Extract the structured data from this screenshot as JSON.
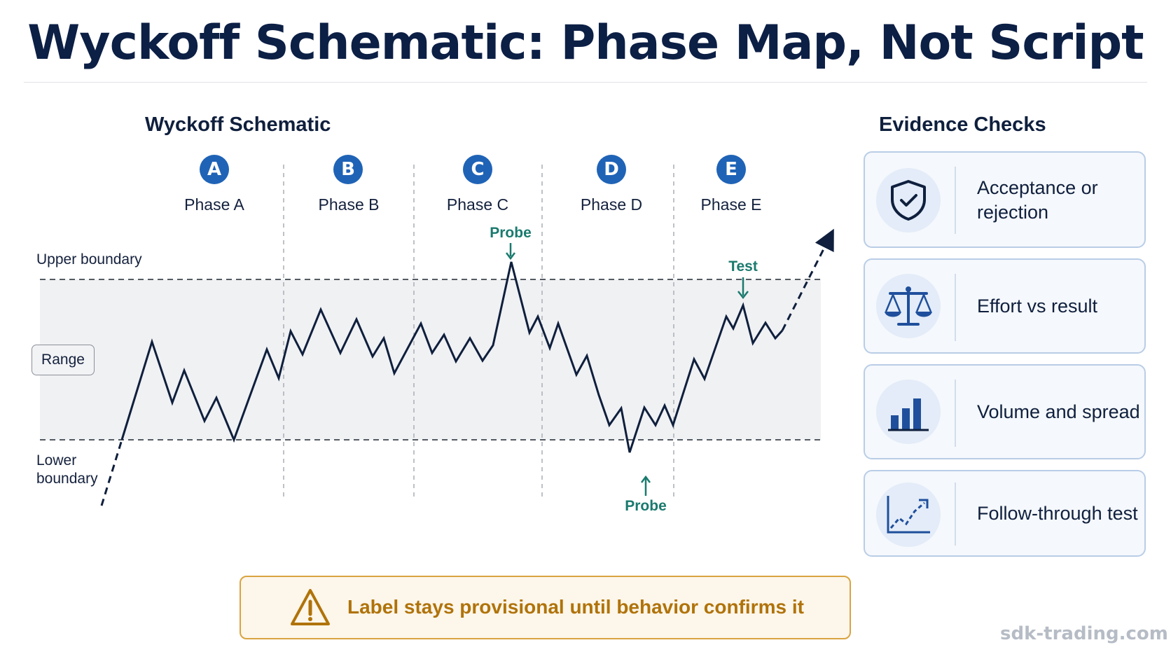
{
  "title": "Wyckoff Schematic: Phase Map, Not Script",
  "schematic": {
    "heading": "Wyckoff Schematic",
    "phases": [
      {
        "badge": "A",
        "label": "Phase A"
      },
      {
        "badge": "B",
        "label": "Phase B"
      },
      {
        "badge": "C",
        "label": "Phase C"
      },
      {
        "badge": "D",
        "label": "Phase D"
      },
      {
        "badge": "E",
        "label": "Phase E"
      }
    ],
    "upper_boundary": "Upper boundary",
    "lower_boundary_line1": "Lower",
    "lower_boundary_line2": "boundary",
    "range_label": "Range",
    "annotations": {
      "probe_top": "Probe",
      "probe_bottom": "Probe",
      "test": "Test"
    },
    "colors": {
      "price_line": "#0f1f3d",
      "range_fill": "#f0f1f3",
      "annotation": "#1a7a6e",
      "badge": "#1f63b6"
    }
  },
  "evidence": {
    "heading": "Evidence Checks",
    "items": [
      {
        "icon": "shield-check-icon",
        "line1": "Acceptance or",
        "line2": "rejection"
      },
      {
        "icon": "balance-scale-icon",
        "line1": "Effort vs result",
        "line2": ""
      },
      {
        "icon": "bar-chart-icon",
        "line1": "Volume and spread",
        "line2": ""
      },
      {
        "icon": "trend-up-chart-icon",
        "line1": "Follow-through test",
        "line2": ""
      }
    ]
  },
  "warning": {
    "icon": "warning-triangle-icon",
    "text": "Label stays provisional until behavior confirms it"
  },
  "watermark": "sdk-trading.com"
}
